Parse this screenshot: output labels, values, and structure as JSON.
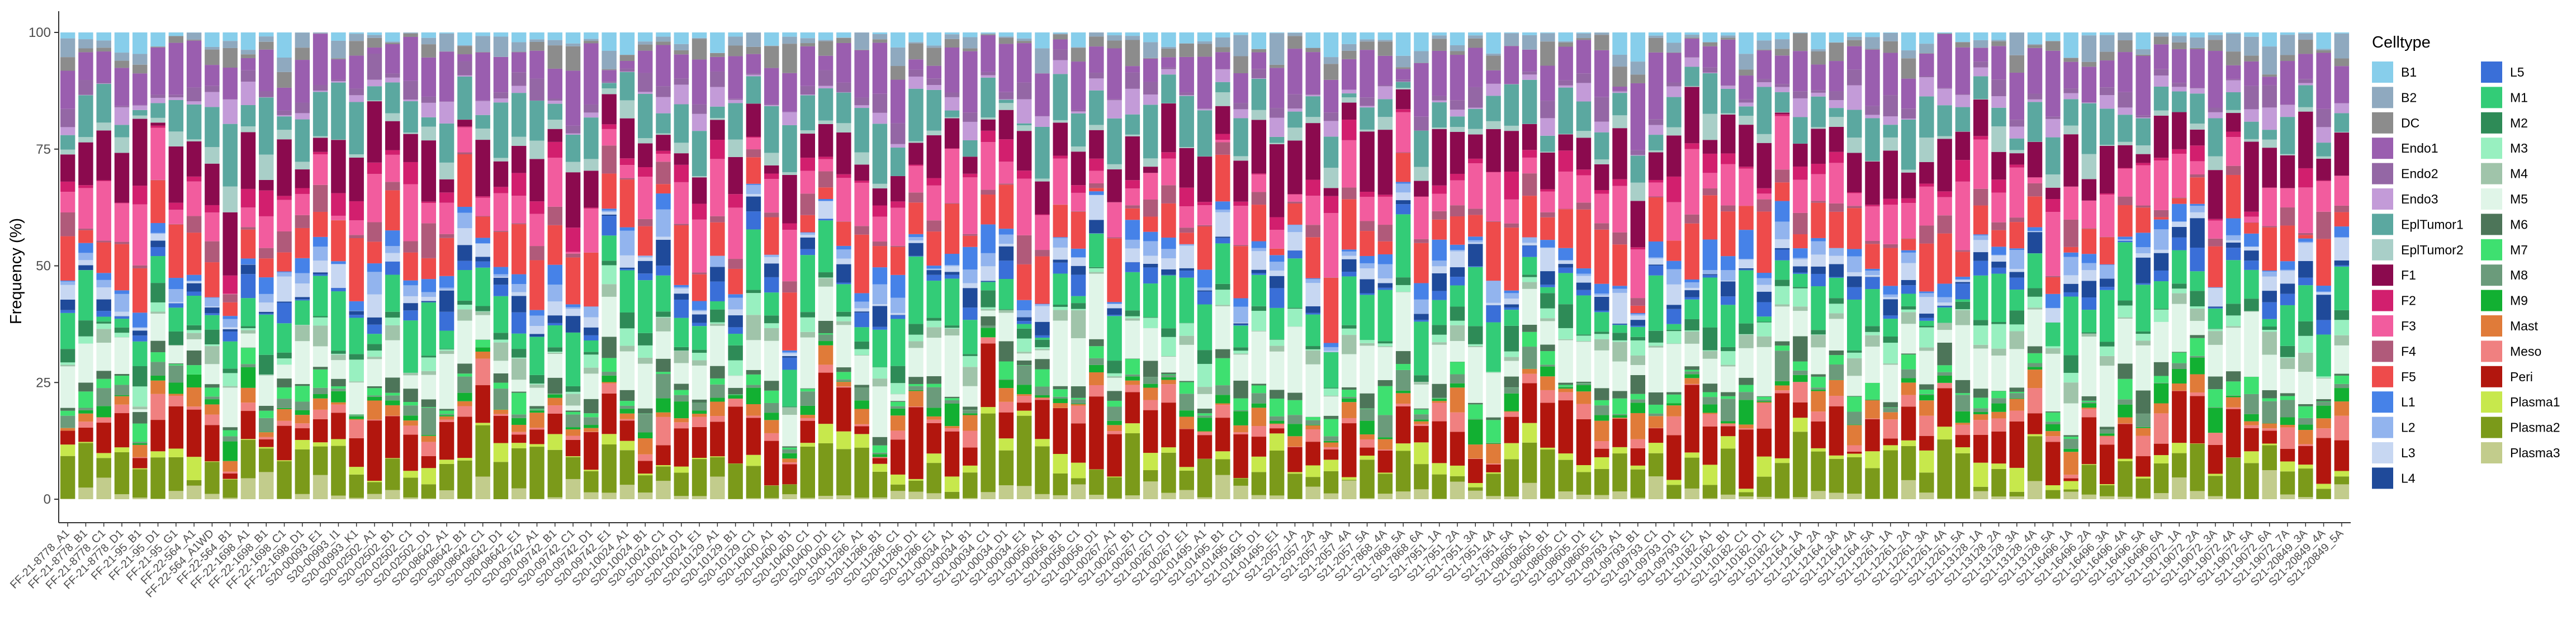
{
  "chart_data": {
    "type": "bar",
    "stacked": true,
    "xlabel": "",
    "ylabel": "Frequency (%)",
    "ylim": [
      0,
      100
    ],
    "yticks": [
      0,
      25,
      50,
      75,
      100
    ],
    "grid": false,
    "legend": {
      "title": "Celltype",
      "position": "right",
      "entries": [
        {
          "name": "B1",
          "color": "#87CEEB"
        },
        {
          "name": "B2",
          "color": "#8FA9BF"
        },
        {
          "name": "DC",
          "color": "#8C8C8C"
        },
        {
          "name": "Endo1",
          "color": "#9A5EAF"
        },
        {
          "name": "Endo2",
          "color": "#9467A5"
        },
        {
          "name": "Endo3",
          "color": "#C39BD8"
        },
        {
          "name": "EplTumor1",
          "color": "#5BA8A0"
        },
        {
          "name": "EplTumor2",
          "color": "#A9CFC8"
        },
        {
          "name": "F1",
          "color": "#8B0A4E"
        },
        {
          "name": "F2",
          "color": "#D21F6E"
        },
        {
          "name": "F3",
          "color": "#F25C9E"
        },
        {
          "name": "F4",
          "color": "#B05A7A"
        },
        {
          "name": "F5",
          "color": "#EE4B4B"
        },
        {
          "name": "L1",
          "color": "#4682E8"
        },
        {
          "name": "L2",
          "color": "#92B4EE"
        },
        {
          "name": "L3",
          "color": "#C7D7F2"
        },
        {
          "name": "L4",
          "color": "#1F4A9A"
        },
        {
          "name": "L5",
          "color": "#3A6FD8"
        },
        {
          "name": "M1",
          "color": "#33CC77"
        },
        {
          "name": "M2",
          "color": "#2E8B57"
        },
        {
          "name": "M3",
          "color": "#98F0C0"
        },
        {
          "name": "M4",
          "color": "#A0C4AA"
        },
        {
          "name": "M5",
          "color": "#E0F5E8"
        },
        {
          "name": "M6",
          "color": "#4D7559"
        },
        {
          "name": "M7",
          "color": "#3EE070"
        },
        {
          "name": "M8",
          "color": "#6B9B7B"
        },
        {
          "name": "M9",
          "color": "#12B032"
        },
        {
          "name": "Mast",
          "color": "#E07B39"
        },
        {
          "name": "Meso",
          "color": "#F08080"
        },
        {
          "name": "Peri",
          "color": "#B2160E"
        },
        {
          "name": "Plasma1",
          "color": "#C7E84C"
        },
        {
          "name": "Plasma2",
          "color": "#7B9A1A"
        },
        {
          "name": "Plasma3",
          "color": "#C2CC8C"
        }
      ]
    },
    "categories": [
      "FF-21-8778_A1",
      "FF-21-8778_B1",
      "FF-21-8778_C1",
      "FF-21-8778_D1",
      "FF-21-95_B1",
      "FF-21-95_D1",
      "FF-21-95_G1",
      "FF-22-564_A1",
      "FF-22-564_A1WD",
      "FF-22-564_B1",
      "FF-22-1698_A1",
      "FF-22-1698_B1",
      "FF-22-1698_C1",
      "FF-22-1698_D1",
      "S20-00093_E1",
      "S20-00993_I1",
      "S20-00993_K1",
      "S20-02502_A1",
      "S20-02502_B1",
      "S20-02502_C1",
      "S20-02502_D1",
      "S20-08642_A1",
      "S20-08642_B1",
      "S20-08642_C1",
      "S20-08642_D1",
      "S20-08642_E1",
      "S20-09742_A1",
      "S20-09742_B1",
      "S20-09742_C1",
      "S20-09742_D1",
      "S20-09742_E1",
      "S20-10024_A1",
      "S20-10024_B1",
      "S20-10024_C1",
      "S20-10024_D1",
      "S20-10024_E1",
      "S20-10129_A1",
      "S20-10129_B1",
      "S20-10129_C1",
      "S20-10400_A1",
      "S20-10400_B1",
      "S20-10400_C1",
      "S20-10400_D1",
      "S20-10400_E1",
      "S20-11286_A1",
      "S20-11286_B1",
      "S20-11286_C1",
      "S20-11286_D1",
      "S20-11286_E1",
      "S21-00034_A1",
      "S21-00034_B1",
      "S21-00034_C1",
      "S21-00034_D1",
      "S21-00034_E1",
      "S21-00056_A1",
      "S21-00056_B1",
      "S21-00056_C1",
      "S21-00056_D1",
      "S21-00267_A1",
      "S21-00267_B1",
      "S21-00267_C1",
      "S21-00267_D1",
      "S21-00267_E1",
      "S21-01495_A1",
      "S21-01495_B1",
      "S21-01495_C1",
      "S21-01495_D1",
      "S21-01495_E1",
      "S21-2057_1A",
      "S21-2057_2A",
      "S21-2057_3A",
      "S21-2057_4A",
      "S21-2057_5A",
      "S21-7868_4A",
      "S21-7868_5A",
      "S21-7868_6A",
      "S21-7951_1A",
      "S21-7951_2A",
      "S21-7951_3A",
      "S21-7951_4A",
      "S21-7951_5A",
      "S21-08605_A1",
      "S21-08605_B1",
      "S21-08605_C1",
      "S21-08605_D1",
      "S21-08605_E1",
      "S21-09793_A1",
      "S21-09793_B1",
      "S21-09793_C1",
      "S21-09793_D1",
      "S21-09793_E1",
      "S21-10182_A1",
      "S21-10182_B1",
      "S21-10182_C1",
      "S21-10182_D1",
      "S21-10182_E1",
      "S21-12164_1A",
      "S21-12164_2A",
      "S21-12164_3A",
      "S21-12164_4A",
      "S21-12164_5A",
      "S21-12261_1A",
      "S21-12261_2A",
      "S21-12261_3A",
      "S21-12261_4A",
      "S21-12261_5A",
      "S21-13128_1A",
      "S21-13128_2A",
      "S21-13128_3A",
      "S21-13128_4A",
      "S21-13128_5A",
      "S21-16496_1A",
      "S21-16496_2A",
      "S21-16496_3A",
      "S21-16496_4A",
      "S21-16496_5A",
      "S21-16496_6A",
      "S21-19072_1A",
      "S21-19072_2A",
      "S21-19072_3A",
      "S21-19072_4A",
      "S21-19072_5A",
      "S21-19072_6A",
      "S21-19072_7A",
      "S21-20849_3A",
      "S21-20849_4A",
      "S21-20849_5A"
    ]
  }
}
